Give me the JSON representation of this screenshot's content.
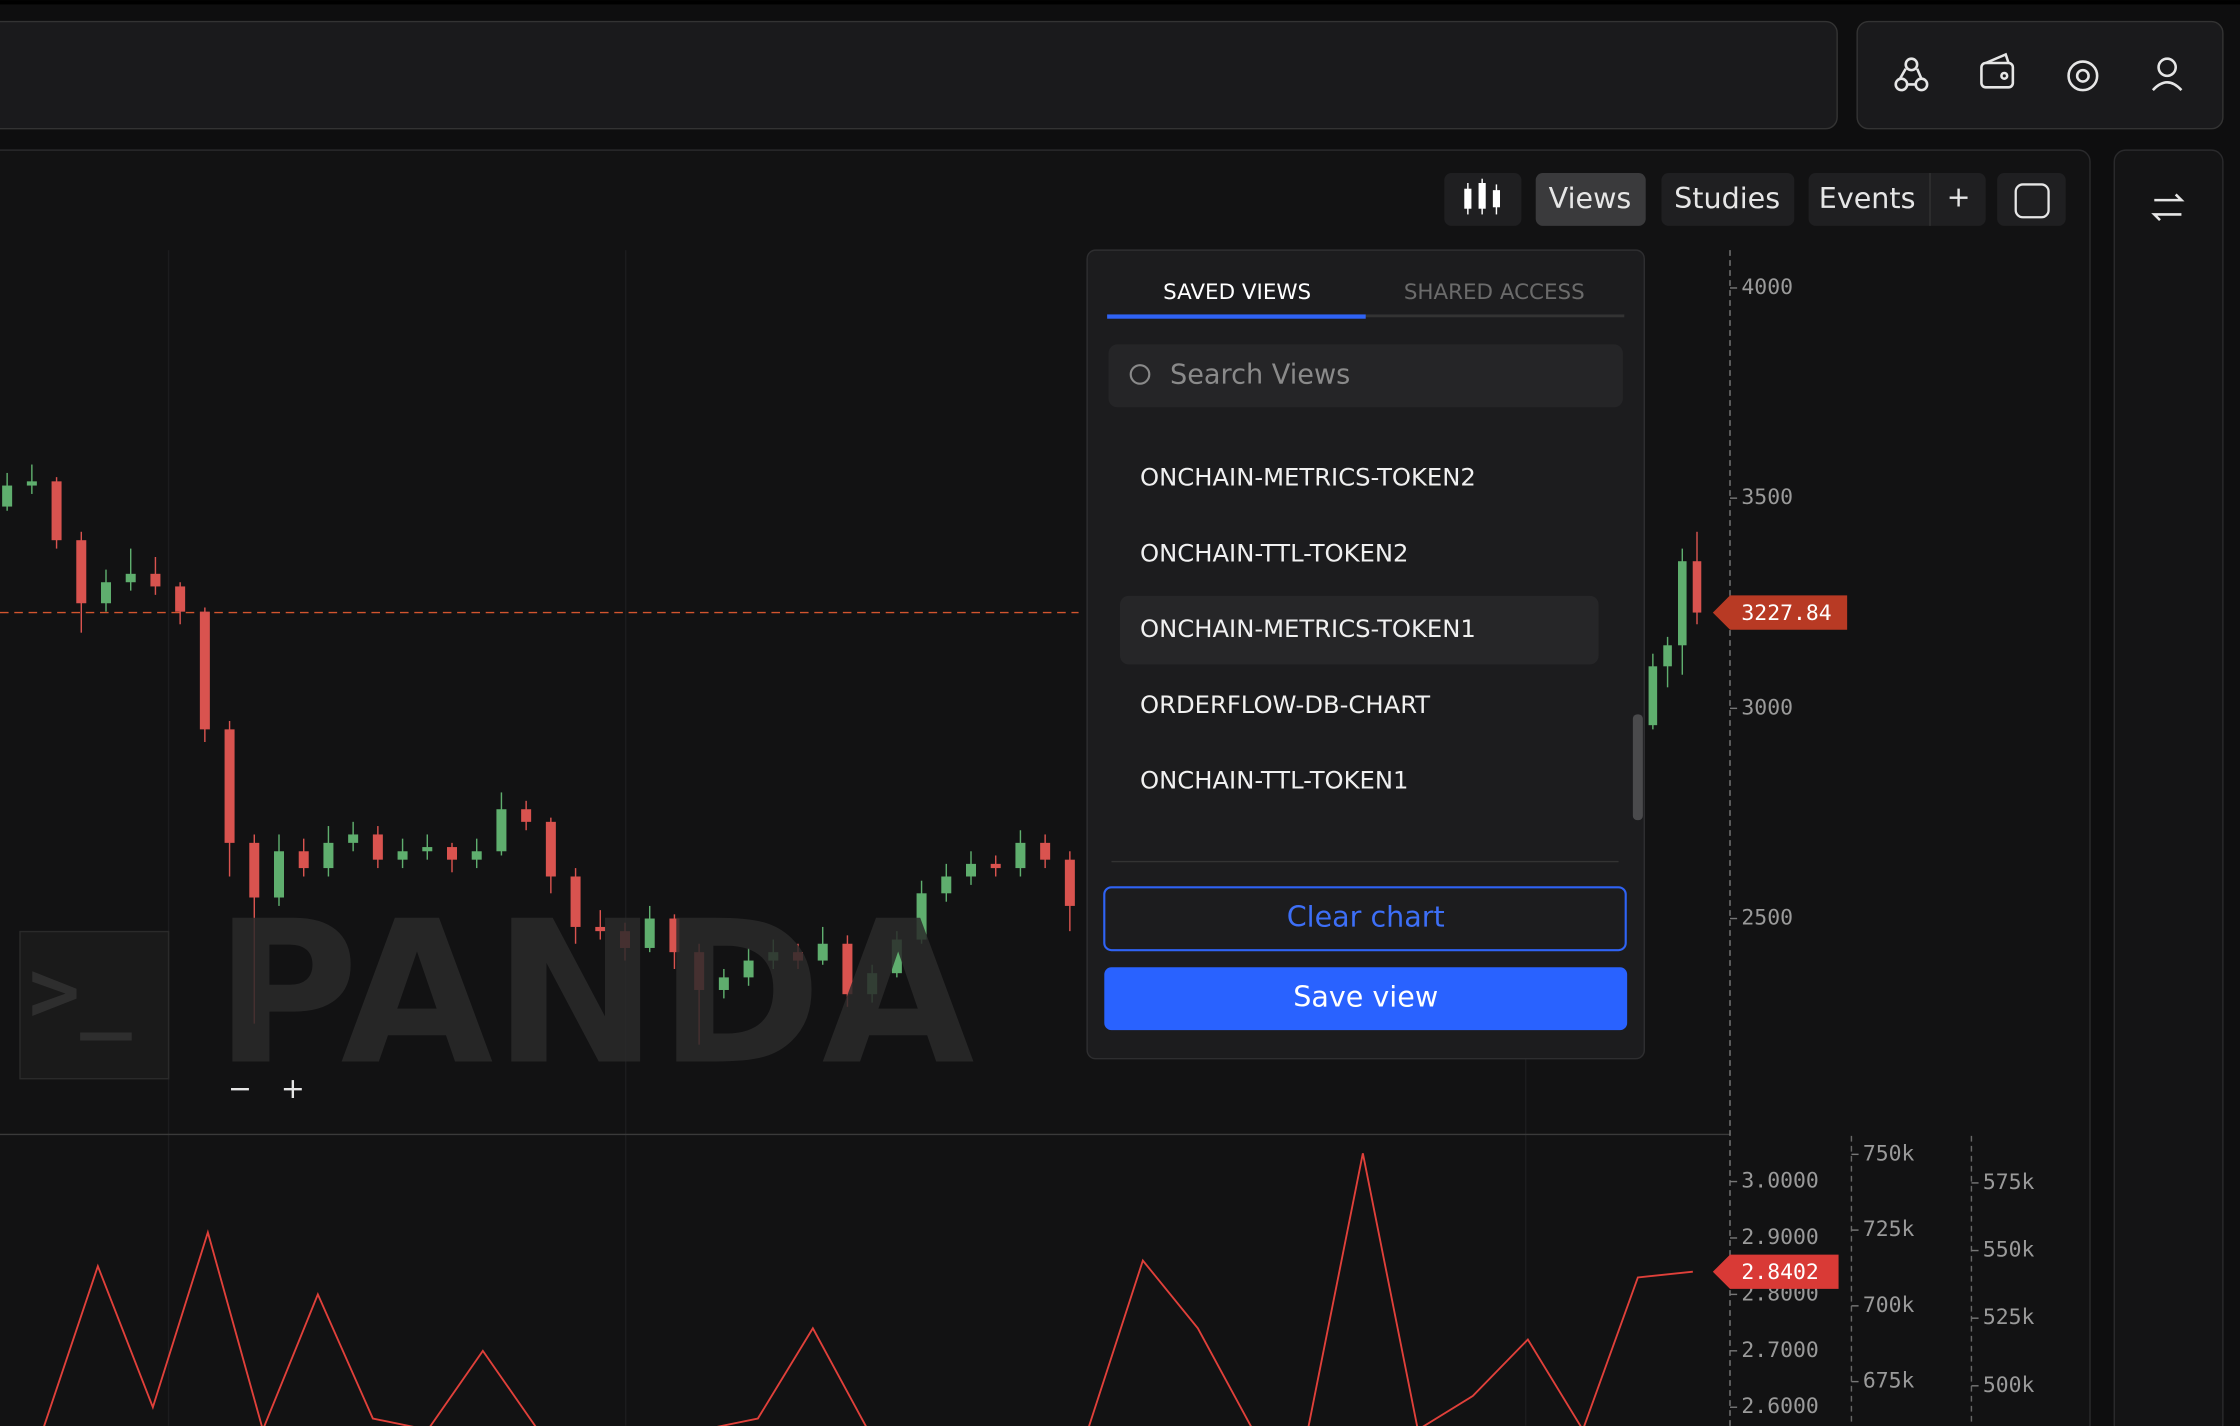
{
  "toolbar": {
    "views": "Views",
    "studies": "Studies",
    "events": "Events",
    "add": "+"
  },
  "views_menu": {
    "tabs": [
      "SAVED VIEWS",
      "SHARED ACCESS"
    ],
    "search_placeholder": "Search Views",
    "items": [
      "ONCHAIN-METRICS-TOKEN2",
      "ONCHAIN-TTL-TOKEN2",
      "ONCHAIN-METRICS-TOKEN1",
      "ORDERFLOW-DB-CHART",
      "ONCHAIN-TTL-TOKEN1"
    ],
    "clear_button": "Clear chart",
    "save_button": "Save view"
  },
  "watermark": "PANDA",
  "zoom": [
    "−",
    "+"
  ],
  "price_chart": {
    "type": "candlestick",
    "ylim": [
      2000,
      4090
    ],
    "yticks": [
      2500,
      3000,
      3500,
      4000
    ],
    "last_price": 3227.84,
    "candles": [
      [
        3480,
        3560,
        3470,
        3530
      ],
      [
        3530,
        3580,
        3510,
        3540
      ],
      [
        3540,
        3550,
        3380,
        3400
      ],
      [
        3400,
        3420,
        3180,
        3250
      ],
      [
        3250,
        3330,
        3230,
        3300
      ],
      [
        3300,
        3380,
        3280,
        3320
      ],
      [
        3320,
        3360,
        3270,
        3290
      ],
      [
        3290,
        3300,
        3200,
        3230
      ],
      [
        3230,
        3240,
        2920,
        2950
      ],
      [
        2950,
        2970,
        2600,
        2680
      ],
      [
        2680,
        2700,
        2250,
        2550
      ],
      [
        2550,
        2700,
        2530,
        2660
      ],
      [
        2660,
        2690,
        2600,
        2620
      ],
      [
        2620,
        2720,
        2600,
        2680
      ],
      [
        2680,
        2730,
        2660,
        2700
      ],
      [
        2700,
        2720,
        2620,
        2640
      ],
      [
        2640,
        2690,
        2620,
        2660
      ],
      [
        2660,
        2700,
        2640,
        2670
      ],
      [
        2670,
        2680,
        2610,
        2640
      ],
      [
        2640,
        2690,
        2620,
        2660
      ],
      [
        2660,
        2800,
        2650,
        2760
      ],
      [
        2760,
        2780,
        2710,
        2730
      ],
      [
        2730,
        2740,
        2560,
        2600
      ],
      [
        2600,
        2620,
        2440,
        2480
      ],
      [
        2480,
        2520,
        2450,
        2470
      ],
      [
        2470,
        2490,
        2400,
        2430
      ],
      [
        2430,
        2530,
        2420,
        2500
      ],
      [
        2500,
        2510,
        2380,
        2420
      ],
      [
        2420,
        2440,
        2200,
        2330
      ],
      [
        2330,
        2380,
        2310,
        2360
      ],
      [
        2360,
        2430,
        2340,
        2400
      ],
      [
        2400,
        2450,
        2380,
        2420
      ],
      [
        2420,
        2440,
        2380,
        2400
      ],
      [
        2400,
        2480,
        2390,
        2440
      ],
      [
        2440,
        2460,
        2290,
        2320
      ],
      [
        2320,
        2390,
        2300,
        2370
      ],
      [
        2370,
        2470,
        2360,
        2450
      ],
      [
        2450,
        2590,
        2440,
        2560
      ],
      [
        2560,
        2630,
        2540,
        2600
      ],
      [
        2600,
        2660,
        2580,
        2630
      ],
      [
        2630,
        2650,
        2600,
        2620
      ],
      [
        2620,
        2710,
        2600,
        2680
      ],
      [
        2680,
        2700,
        2620,
        2640
      ],
      [
        2640,
        2660,
        2470,
        2530
      ]
    ],
    "candles_right": [
      [
        2960,
        3130,
        2950,
        3100
      ],
      [
        3100,
        3170,
        3050,
        3150
      ],
      [
        3150,
        3380,
        3080,
        3350
      ],
      [
        3350,
        3420,
        3200,
        3227.84
      ]
    ]
  },
  "indicator": {
    "type": "line",
    "ylim": [
      2.567,
      3.081
    ],
    "yticks": [
      {
        "value": 3,
        "label": "3.0000"
      },
      {
        "value": 2.9,
        "label": "2.9000"
      },
      {
        "value": 2.8,
        "label": "2.8000"
      },
      {
        "value": 2.7,
        "label": "2.7000"
      },
      {
        "value": 2.6,
        "label": "2.6000"
      }
    ],
    "last_value": 2.8402,
    "color": "#e0403a",
    "values": [
      2.56,
      2.85,
      2.6,
      2.91,
      2.56,
      2.8,
      2.58,
      2.56,
      2.7,
      2.56,
      2.56,
      2.56,
      2.56,
      2.58,
      2.74,
      2.56,
      2.56,
      2.56,
      2.56,
      2.56,
      2.86,
      2.74,
      2.56,
      2.56,
      3.05,
      2.56,
      2.62,
      2.72,
      2.56,
      2.83,
      2.8402
    ],
    "volume_axis_1": {
      "ylim": [
        660400,
        756100
      ],
      "yticks": [
        {
          "value": 750000,
          "label": "750k"
        },
        {
          "value": 725000,
          "label": "725k"
        },
        {
          "value": 700000,
          "label": "700k"
        },
        {
          "value": 675000,
          "label": "675k"
        }
      ]
    },
    "volume_axis_2": {
      "ylim": [
        485200,
        592400
      ],
      "yticks": [
        {
          "value": 575000,
          "label": "575k"
        },
        {
          "value": 550000,
          "label": "550k"
        },
        {
          "value": 525000,
          "label": "525k"
        },
        {
          "value": 500000,
          "label": "500k"
        }
      ]
    }
  }
}
